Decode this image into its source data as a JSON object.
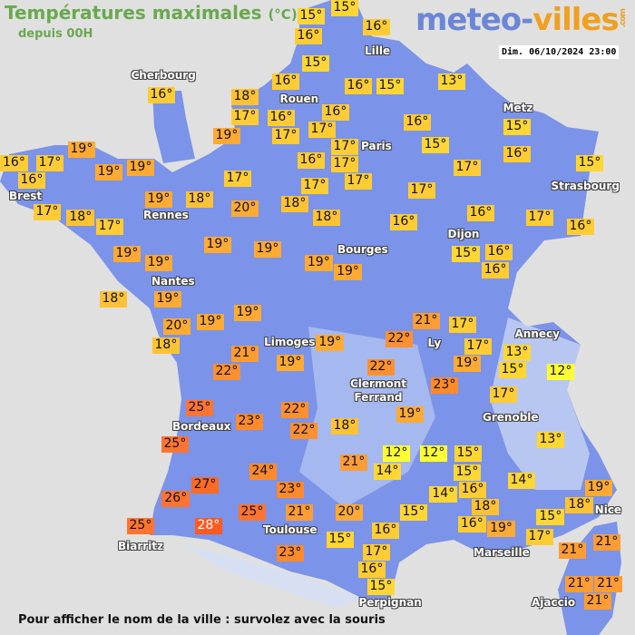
{
  "header": {
    "title": "Températures maximales",
    "unit": "(°C)",
    "subtitle": "depuis 00H",
    "date": "Dim. 06/10/2024 23:00"
  },
  "logo": {
    "part1": "meteo-",
    "part2": "villes",
    "part3": ".com"
  },
  "footer": "Pour afficher le nom de la ville : survolez avec la souris",
  "colors": {
    "land": "#7b93e8",
    "sea": "#e0e0e0",
    "mountain": "#c8d4f4",
    "scale": {
      "12": "#ffff33",
      "13": "#ffd633",
      "14": "#ffd633",
      "15": "#ffd633",
      "16": "#ffcc33",
      "17": "#ffcc33",
      "18": "#ffc233",
      "19": "#ffaa33",
      "20": "#ffaa33",
      "21": "#ff9c33",
      "22": "#ff9030",
      "23": "#ff8a2a",
      "24": "#ff8a2a",
      "25": "#ff7430",
      "26": "#ff7430",
      "27": "#ff6a25",
      "28": "#ff5a20"
    }
  },
  "cities": [
    "Cherbourg",
    "Rouen",
    "Lille",
    "Paris",
    "Metz",
    "Strasbourg",
    "Brest",
    "Rennes",
    "Dijon",
    "Bourges",
    "Nantes",
    "Limoges",
    "Annecy",
    "Ly",
    "Clermont\nFerrand",
    "Grenoble",
    "Bordeaux",
    "Toulouse",
    "Nice",
    "Marseille",
    "Biarritz",
    "Perpignan",
    "Ajaccio"
  ],
  "temperatures": [
    15,
    15,
    16,
    16,
    15,
    16,
    16,
    18,
    17,
    16,
    16,
    16,
    15,
    13,
    19,
    17,
    17,
    17,
    16,
    15,
    15,
    16,
    17,
    15,
    16,
    17,
    16,
    19,
    19,
    19,
    17,
    16,
    17,
    17,
    17,
    17,
    17,
    18,
    17,
    19,
    18,
    20,
    18,
    18,
    16,
    16,
    17,
    16,
    19,
    19,
    19,
    19,
    19,
    19,
    15,
    16,
    16,
    18,
    19,
    20,
    19,
    19,
    18,
    21,
    22,
    19,
    19,
    21,
    22,
    17,
    17,
    19,
    13,
    15,
    12,
    22,
    23,
    17,
    25,
    25,
    23,
    22,
    22,
    18,
    19,
    13,
    12,
    21,
    14,
    12,
    15,
    15,
    24,
    27,
    26,
    23,
    16,
    14,
    14,
    18,
    19,
    18,
    16,
    15,
    20,
    21,
    25,
    25,
    28,
    19,
    15,
    17,
    16,
    15,
    21,
    21,
    23,
    17,
    16,
    15,
    21,
    21,
    21
  ],
  "temp_unit": "°"
}
